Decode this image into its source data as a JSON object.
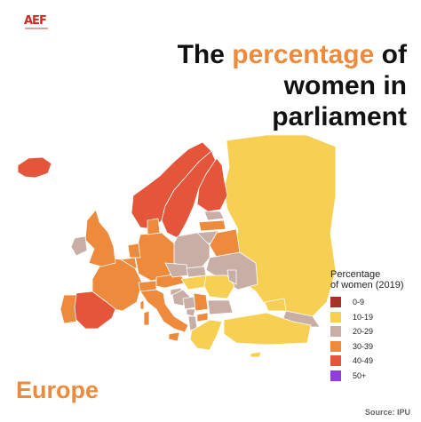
{
  "logo": {
    "text": "AEF"
  },
  "title": {
    "line1_pre": "The",
    "line1_accent": "percentage",
    "line1_post": "of",
    "line2": "women in",
    "line3": "parliament"
  },
  "legend": {
    "title_line1": "Percentage",
    "title_line2": "of women (2019)",
    "items": [
      {
        "label": "0-9",
        "color": "#a83226"
      },
      {
        "label": "10-19",
        "color": "#f7cf52"
      },
      {
        "label": "20-29",
        "color": "#c9aea6"
      },
      {
        "label": "30-39",
        "color": "#ee8a3c"
      },
      {
        "label": "40-49",
        "color": "#e5553a"
      },
      {
        "label": "50+",
        "color": "#8e3fd6"
      }
    ]
  },
  "region_label": "Europe",
  "source": "Source: IPU",
  "map": {
    "countries": [
      {
        "name": "Iceland",
        "bucket": "40-49"
      },
      {
        "name": "Norway",
        "bucket": "40-49"
      },
      {
        "name": "Sweden",
        "bucket": "40-49"
      },
      {
        "name": "Finland",
        "bucket": "40-49"
      },
      {
        "name": "Russia",
        "bucket": "10-19"
      },
      {
        "name": "Estonia",
        "bucket": "20-29"
      },
      {
        "name": "Latvia",
        "bucket": "30-39"
      },
      {
        "name": "Lithuania",
        "bucket": "20-29"
      },
      {
        "name": "Belarus",
        "bucket": "30-39"
      },
      {
        "name": "Ukraine",
        "bucket": "20-29"
      },
      {
        "name": "Poland",
        "bucket": "20-29"
      },
      {
        "name": "Germany",
        "bucket": "30-39"
      },
      {
        "name": "Denmark",
        "bucket": "30-39"
      },
      {
        "name": "Netherlands",
        "bucket": "30-39"
      },
      {
        "name": "Belgium",
        "bucket": "30-39"
      },
      {
        "name": "France",
        "bucket": "30-39"
      },
      {
        "name": "United Kingdom",
        "bucket": "30-39"
      },
      {
        "name": "Ireland",
        "bucket": "20-29"
      },
      {
        "name": "Spain",
        "bucket": "40-49"
      },
      {
        "name": "Portugal",
        "bucket": "30-39"
      },
      {
        "name": "Italy",
        "bucket": "30-39"
      },
      {
        "name": "Switzerland",
        "bucket": "30-39"
      },
      {
        "name": "Austria",
        "bucket": "30-39"
      },
      {
        "name": "Czechia",
        "bucket": "20-29"
      },
      {
        "name": "Slovakia",
        "bucket": "20-29"
      },
      {
        "name": "Hungary",
        "bucket": "10-19"
      },
      {
        "name": "Romania",
        "bucket": "10-19"
      },
      {
        "name": "Moldova",
        "bucket": "20-29"
      },
      {
        "name": "Slovenia",
        "bucket": "20-29"
      },
      {
        "name": "Croatia",
        "bucket": "20-29"
      },
      {
        "name": "Bosnia and Herzegovina",
        "bucket": "20-29"
      },
      {
        "name": "Serbia",
        "bucket": "30-39"
      },
      {
        "name": "Montenegro",
        "bucket": "20-29"
      },
      {
        "name": "Albania",
        "bucket": "20-29"
      },
      {
        "name": "North Macedonia",
        "bucket": "30-39"
      },
      {
        "name": "Bulgaria",
        "bucket": "20-29"
      },
      {
        "name": "Greece",
        "bucket": "10-19"
      },
      {
        "name": "Turkey",
        "bucket": "10-19"
      },
      {
        "name": "Georgia",
        "bucket": "10-19"
      },
      {
        "name": "Cyprus",
        "bucket": "10-19"
      },
      {
        "name": "Kazakhstan",
        "bucket": "20-29"
      }
    ]
  }
}
